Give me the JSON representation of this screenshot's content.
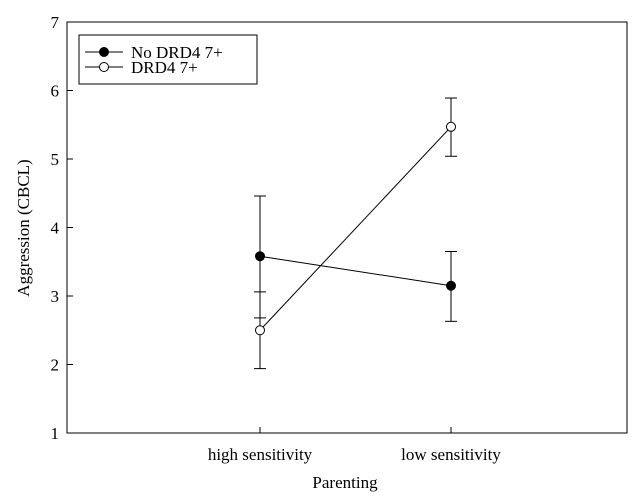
{
  "chart_data": {
    "type": "line",
    "xlabel": "Parenting",
    "ylabel": "Aggression (CBCL)",
    "categories": [
      "high sensitivity",
      "low sensitivity"
    ],
    "ylim": [
      1,
      7
    ],
    "yticks": [
      1,
      2,
      3,
      4,
      5,
      6,
      7
    ],
    "grid": false,
    "legend_position": "top-left",
    "series": [
      {
        "name": "No DRD4 7+",
        "marker": "filled-circle",
        "color": "#000000",
        "values": [
          3.58,
          3.15
        ],
        "error_low": [
          2.68,
          2.63
        ],
        "error_high": [
          4.46,
          3.65
        ]
      },
      {
        "name": "DRD4 7+",
        "marker": "open-circle",
        "color": "#000000",
        "values": [
          2.5,
          5.47
        ],
        "error_low": [
          1.94,
          5.04
        ],
        "error_high": [
          3.06,
          5.89
        ]
      }
    ]
  }
}
